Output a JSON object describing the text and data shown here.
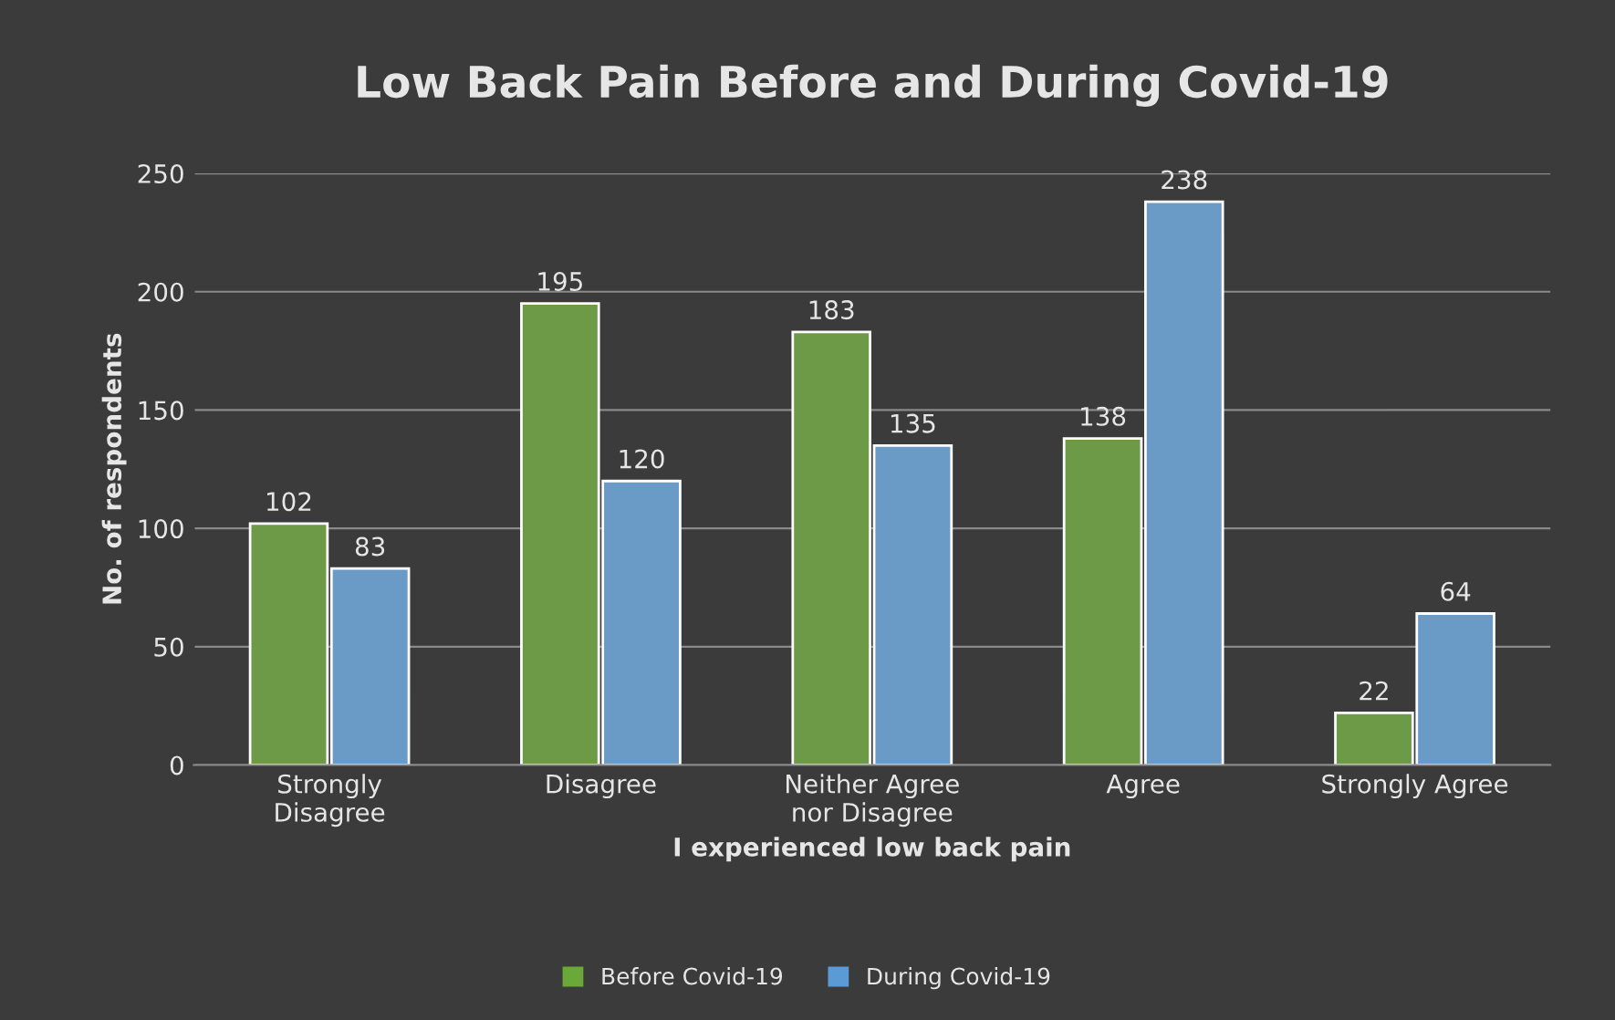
{
  "chart_data": {
    "type": "bar",
    "title": "Low Back Pain Before and During Covid-19",
    "xlabel": "I experienced low back pain",
    "ylabel": "No. of respondents",
    "categories": [
      "Strongly\nDisagree",
      "Disagree",
      "Neither Agree\nnor Disagree",
      "Agree",
      "Strongly Agree"
    ],
    "series": [
      {
        "name": "Before Covid-19",
        "color": "#6aa839",
        "values": [
          102,
          195,
          183,
          138,
          22
        ]
      },
      {
        "name": "During Covid-19",
        "color": "#5b9bd5",
        "values": [
          83,
          120,
          135,
          238,
          64
        ]
      }
    ],
    "ylim": [
      0,
      250
    ],
    "yticks": [
      0,
      50,
      100,
      150,
      200,
      250
    ],
    "grid": "y",
    "legend": "bottom",
    "data_labels": true
  }
}
